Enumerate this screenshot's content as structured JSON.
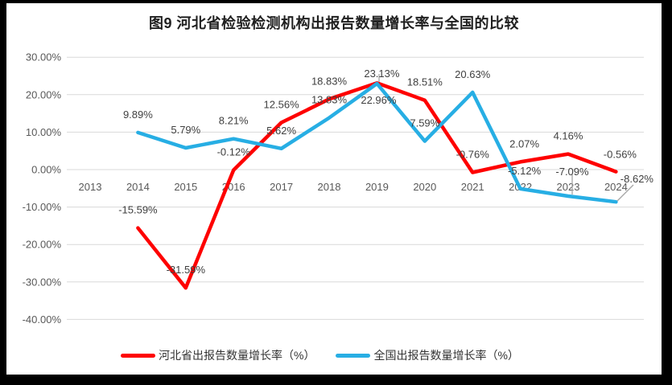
{
  "title": "图9 河北省检验检测机构出报告数量增长率与全国的比较",
  "chart_data": {
    "type": "line",
    "title": "图9 河北省检验检测机构出报告数量增长率与全国的比较",
    "categories": [
      "2013",
      "2014",
      "2015",
      "2016",
      "2017",
      "2018",
      "2019",
      "2020",
      "2021",
      "2022",
      "2023",
      "2024"
    ],
    "series": [
      {
        "name": "河北省出报告数量增长率（%）",
        "color": "#FE0000",
        "values": [
          null,
          -15.59,
          -31.59,
          -0.12,
          12.56,
          18.83,
          23.13,
          18.51,
          -0.76,
          2.07,
          4.16,
          -0.56
        ],
        "labels": [
          null,
          "-15.59%",
          "-31.59%",
          "-0.12%",
          "12.56%",
          "18.83%",
          "23.13%",
          "18.51%",
          "-0.76%",
          "2.07%",
          "4.16%",
          "-0.56%"
        ]
      },
      {
        "name": "全国出报告数量增长率（%）",
        "color": "#27AEE4",
        "values": [
          null,
          9.89,
          5.79,
          8.21,
          5.62,
          13.83,
          22.96,
          7.59,
          20.63,
          -5.12,
          -7.09,
          -8.62
        ],
        "labels": [
          null,
          "9.89%",
          "5.79%",
          "8.21%",
          "5.62%",
          "13.83%",
          "22.96%",
          "7.59%",
          "20.63%",
          "-5.12%",
          "-7.09%",
          "-8.62%"
        ]
      }
    ],
    "y_axis": {
      "ticks": [
        "30.00%",
        "20.00%",
        "10.00%",
        "0.00%",
        "-10.00%",
        "-20.00%",
        "-30.00%",
        "-40.00%"
      ],
      "max": 30,
      "min": -40,
      "step": 10
    },
    "grid": true,
    "legend_position": "bottom",
    "colors": {
      "grid": "#D9D9D9",
      "axis_text": "#595959",
      "label_text": "#404040",
      "leader": "#A6A6A6",
      "background": "#FFFFFF",
      "frame": "#000000"
    }
  }
}
